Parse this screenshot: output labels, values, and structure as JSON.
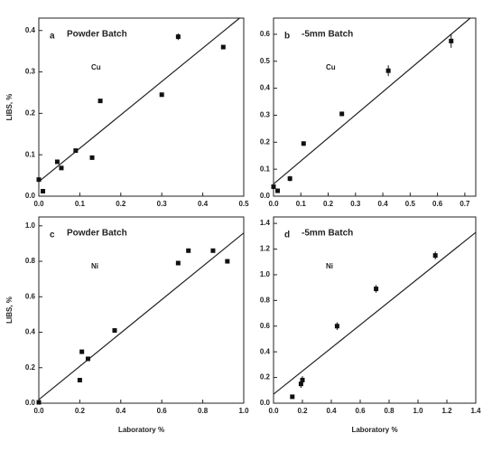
{
  "chart_data": [
    {
      "type": "scatter",
      "label": "a",
      "title": "Powder Batch",
      "element": "Cu",
      "ylabel": "LIBS, %",
      "x": [
        0.0,
        0.01,
        0.045,
        0.055,
        0.09,
        0.13,
        0.15,
        0.3,
        0.34,
        0.45
      ],
      "values": [
        0.04,
        0.012,
        0.083,
        0.068,
        0.11,
        0.093,
        0.23,
        0.245,
        0.385,
        0.36
      ],
      "errors": [
        null,
        null,
        null,
        null,
        null,
        null,
        null,
        null,
        0.008,
        null
      ],
      "fit_line": {
        "x": [
          0,
          0.49
        ],
        "y": [
          0.035,
          0.43
        ]
      },
      "color": "#111111",
      "grid": false,
      "xlim": [
        0,
        0.5
      ],
      "ylim": [
        0,
        0.43
      ],
      "xticks": [
        {
          "value": 0,
          "label": "0.0"
        },
        0.1,
        0.2,
        0.3,
        0.4,
        0.5
      ],
      "yticks": [
        {
          "value": 0,
          "label": "0.0"
        },
        0.1,
        0.2,
        0.3,
        0.4
      ]
    },
    {
      "type": "scatter",
      "label": "b",
      "title": "-5mm Batch",
      "element": "Cu",
      "x": [
        0.0,
        0.015,
        0.06,
        0.11,
        0.25,
        0.42,
        0.65
      ],
      "values": [
        0.035,
        0.02,
        0.065,
        0.195,
        0.305,
        0.465,
        0.575
      ],
      "errors": [
        0.01,
        null,
        0.01,
        0.008,
        null,
        0.02,
        0.025
      ],
      "fit_line": {
        "x": [
          0,
          0.72
        ],
        "y": [
          0.045,
          0.66
        ]
      },
      "color": "#111111",
      "grid": false,
      "xlim": [
        0,
        0.74
      ],
      "ylim": [
        0,
        0.66
      ],
      "xticks": [
        {
          "value": 0,
          "label": "0.0"
        },
        0.1,
        0.2,
        0.3,
        0.4,
        0.5,
        0.6,
        0.7
      ],
      "yticks": [
        {
          "value": 0,
          "label": "0.0"
        },
        0.1,
        0.2,
        0.3,
        0.4,
        0.5,
        0.6
      ]
    },
    {
      "type": "scatter",
      "label": "c",
      "title": "Powder Batch",
      "element": "Ni",
      "ylabel": "LIBS, %",
      "xlabel": "Laboratory %",
      "x": [
        0.0,
        0.2,
        0.21,
        0.24,
        0.37,
        0.68,
        0.73,
        0.85,
        0.92
      ],
      "values": [
        0.005,
        0.13,
        0.29,
        0.25,
        0.41,
        0.79,
        0.86,
        0.86,
        0.8
      ],
      "errors": [
        null,
        null,
        null,
        null,
        null,
        null,
        null,
        null,
        null
      ],
      "fit_line": {
        "x": [
          0,
          1.0
        ],
        "y": [
          0.02,
          0.96
        ]
      },
      "color": "#111111",
      "grid": false,
      "xlim": [
        0,
        1.0
      ],
      "ylim": [
        0,
        1.05
      ],
      "xticks": [
        {
          "value": 0,
          "label": "0.0"
        },
        0.2,
        0.4,
        0.6,
        0.8,
        {
          "value": 1,
          "label": "1.0"
        }
      ],
      "yticks": [
        {
          "value": 0,
          "label": "0.0"
        },
        0.2,
        0.4,
        0.6,
        0.8,
        {
          "value": 1,
          "label": "1.0"
        }
      ]
    },
    {
      "type": "scatter",
      "label": "d",
      "title": "-5mm Batch",
      "element": "Ni",
      "xlabel": "Laboratory %",
      "x": [
        0.13,
        0.19,
        0.2,
        0.44,
        0.71,
        1.12
      ],
      "values": [
        0.05,
        0.15,
        0.18,
        0.6,
        0.89,
        1.15
      ],
      "errors": [
        null,
        0.03,
        0.03,
        0.03,
        0.03,
        0.03
      ],
      "fit_line": {
        "x": [
          0,
          1.4
        ],
        "y": [
          0.07,
          1.33
        ]
      },
      "color": "#111111",
      "grid": false,
      "xlim": [
        0,
        1.4
      ],
      "ylim": [
        0,
        1.45
      ],
      "xticks": [
        {
          "value": 0,
          "label": "0.0"
        },
        0.2,
        0.4,
        0.6,
        0.8,
        {
          "value": 1,
          "label": "1.0"
        },
        1.2,
        1.4
      ],
      "yticks": [
        {
          "value": 0,
          "label": "0.0"
        },
        0.2,
        0.4,
        0.6,
        0.8,
        {
          "value": 1,
          "label": "1.0"
        },
        1.2,
        1.4
      ]
    }
  ]
}
